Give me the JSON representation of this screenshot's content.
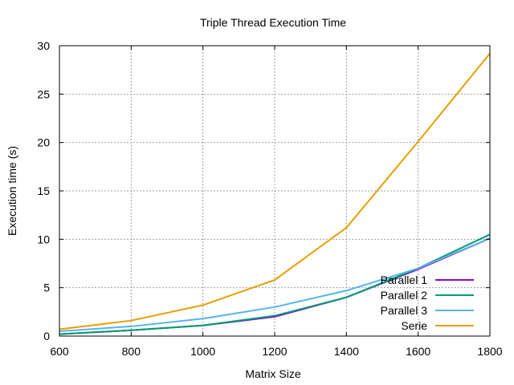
{
  "chart_data": {
    "type": "line",
    "title": "Triple Thread Execution Time",
    "xlabel": "Matrix Size",
    "ylabel": "Execution time (s)",
    "xlim": [
      600,
      1800
    ],
    "ylim": [
      0,
      30
    ],
    "xticks": [
      600,
      800,
      1000,
      1200,
      1400,
      1600,
      1800
    ],
    "yticks": [
      0,
      5,
      10,
      15,
      20,
      25,
      30
    ],
    "grid": true,
    "legend_position": "bottom-right",
    "x": [
      600,
      800,
      1000,
      1200,
      1400,
      1600,
      1800
    ],
    "series": [
      {
        "name": "Parallel 1",
        "color": "#9400d3",
        "values": [
          0.2,
          0.6,
          1.1,
          2.0,
          4.0,
          6.9,
          10.1
        ]
      },
      {
        "name": "Parallel 2",
        "color": "#009e73",
        "values": [
          0.2,
          0.6,
          1.1,
          2.1,
          4.0,
          7.0,
          10.5
        ]
      },
      {
        "name": "Parallel 3",
        "color": "#56b4e9",
        "values": [
          0.5,
          1.0,
          1.8,
          3.0,
          4.7,
          7.0,
          10.1
        ]
      },
      {
        "name": "Serie",
        "color": "#e69f00",
        "values": [
          0.7,
          1.6,
          3.2,
          5.8,
          11.2,
          20.1,
          29.2
        ]
      }
    ]
  }
}
